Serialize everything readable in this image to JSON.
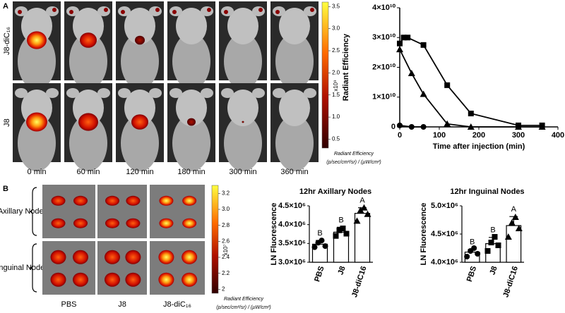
{
  "panel_a": {
    "label": "A",
    "rows": [
      "J8-diC₁₆",
      "J8"
    ],
    "times": [
      "0 min",
      "60 min",
      "120 min",
      "180 min",
      "300 min",
      "360 min"
    ],
    "colorbar": {
      "lim": [
        0.3,
        3.6
      ],
      "ticks": [
        0.5,
        {
          "value": 1,
          "label": "1.0"
        },
        1.5,
        {
          "value": 2,
          "label": "2.0"
        },
        2.5,
        {
          "value": 3,
          "label": "3.0"
        },
        3.5
      ],
      "exponent": "x10⁹",
      "title": "Radiant Efficiency",
      "unit": "(p/sec/cm²/sr) / (µW/cm²)"
    }
  },
  "panel_b": {
    "label": "B",
    "rows": [
      "Axillary Nodes",
      "Inguinal Nodes"
    ],
    "groups": [
      "PBS",
      "J8",
      "J8-diC₁₆"
    ],
    "colorbar": {
      "lim": [
        1.95,
        3.3
      ],
      "ticks": [
        {
          "value": 2,
          "label": "2"
        },
        2.2,
        2.4,
        2.6,
        2.8,
        {
          "value": 3,
          "label": "3.0"
        },
        3.2
      ],
      "exponent": "x10⁷",
      "title": "Radiant Efficiency",
      "unit": "(p/sec/cm²/sr) / (µW/cm²)"
    }
  },
  "chart_data": [
    {
      "type": "line",
      "xlabel": "Time after injection (min)",
      "ylabel": "Radiant Efficiency",
      "xlim": [
        0,
        400
      ],
      "xticks": [
        0,
        100,
        200,
        300,
        400
      ],
      "ylim": [
        0,
        40000000000
      ],
      "yticks": [
        0,
        {
          "value": 10000000000,
          "label": "1×10¹⁰"
        },
        {
          "value": 20000000000,
          "label": "2×10¹⁰"
        },
        {
          "value": 30000000000,
          "label": "3×10¹⁰"
        },
        {
          "value": 40000000000,
          "label": "4×10¹⁰"
        }
      ],
      "series": [
        {
          "marker": "square",
          "color": "#000000",
          "x": [
            0,
            10,
            20,
            60,
            120,
            180,
            300,
            360
          ],
          "values": [
            28000000000,
            30000000000,
            30000000000,
            27500000000,
            14000000000,
            4500000000,
            500000000,
            500000000
          ]
        },
        {
          "marker": "triangle",
          "color": "#000000",
          "x": [
            0,
            30,
            60,
            120,
            180,
            300,
            360
          ],
          "values": [
            26000000000,
            18000000000,
            11000000000,
            1000000000,
            0,
            0,
            0
          ]
        },
        {
          "marker": "circle",
          "color": "#000000",
          "x": [
            0,
            30,
            60
          ],
          "values": [
            500000000,
            0,
            0
          ]
        }
      ]
    },
    {
      "type": "bar",
      "title": "12hr Axillary Nodes",
      "ylabel": "LN Fluorescence",
      "categories": [
        "PBS",
        "J8",
        "J8-diC16"
      ],
      "values": [
        3480000,
        3800000,
        4300000
      ],
      "errors": [
        100000,
        130000,
        150000
      ],
      "annotations": [
        "B",
        "B",
        "A"
      ],
      "points": [
        [
          3400000,
          3520000,
          3580000,
          3430000
        ],
        [
          3700000,
          3850000,
          3900000,
          3760000
        ],
        [
          4100000,
          4380000,
          4450000,
          4280000
        ]
      ],
      "color": "#ffffff",
      "ylim": [
        3000000,
        4500000
      ],
      "yticks": [
        {
          "value": 3000000,
          "label": "3.0×10⁶"
        },
        {
          "value": 3500000,
          "label": "3.5×10⁶"
        },
        {
          "value": 4000000,
          "label": "4.0×10⁶"
        },
        {
          "value": 4500000,
          "label": "4.5×10⁶"
        }
      ]
    },
    {
      "type": "bar",
      "title": "12hr Inguinal Nodes",
      "ylabel": "LN Fluorescence",
      "categories": [
        "PBS",
        "J8",
        "J8-diC16"
      ],
      "values": [
        4180000,
        4330000,
        4650000
      ],
      "errors": [
        50000,
        110000,
        160000
      ],
      "annotations": [
        "B",
        "B",
        "A"
      ],
      "points": [
        [
          4100000,
          4200000,
          4250000,
          4150000
        ],
        [
          4200000,
          4350000,
          4450000,
          4300000
        ],
        [
          4450000,
          4700000,
          4800000,
          4600000
        ]
      ],
      "color": "#ffffff",
      "ylim": [
        4000000,
        5000000
      ],
      "yticks": [
        {
          "value": 4000000,
          "label": "4.0×10⁶"
        },
        {
          "value": 4500000,
          "label": "4.5×10⁶"
        },
        {
          "value": 5000000,
          "label": "5.0×10⁶"
        }
      ]
    }
  ]
}
